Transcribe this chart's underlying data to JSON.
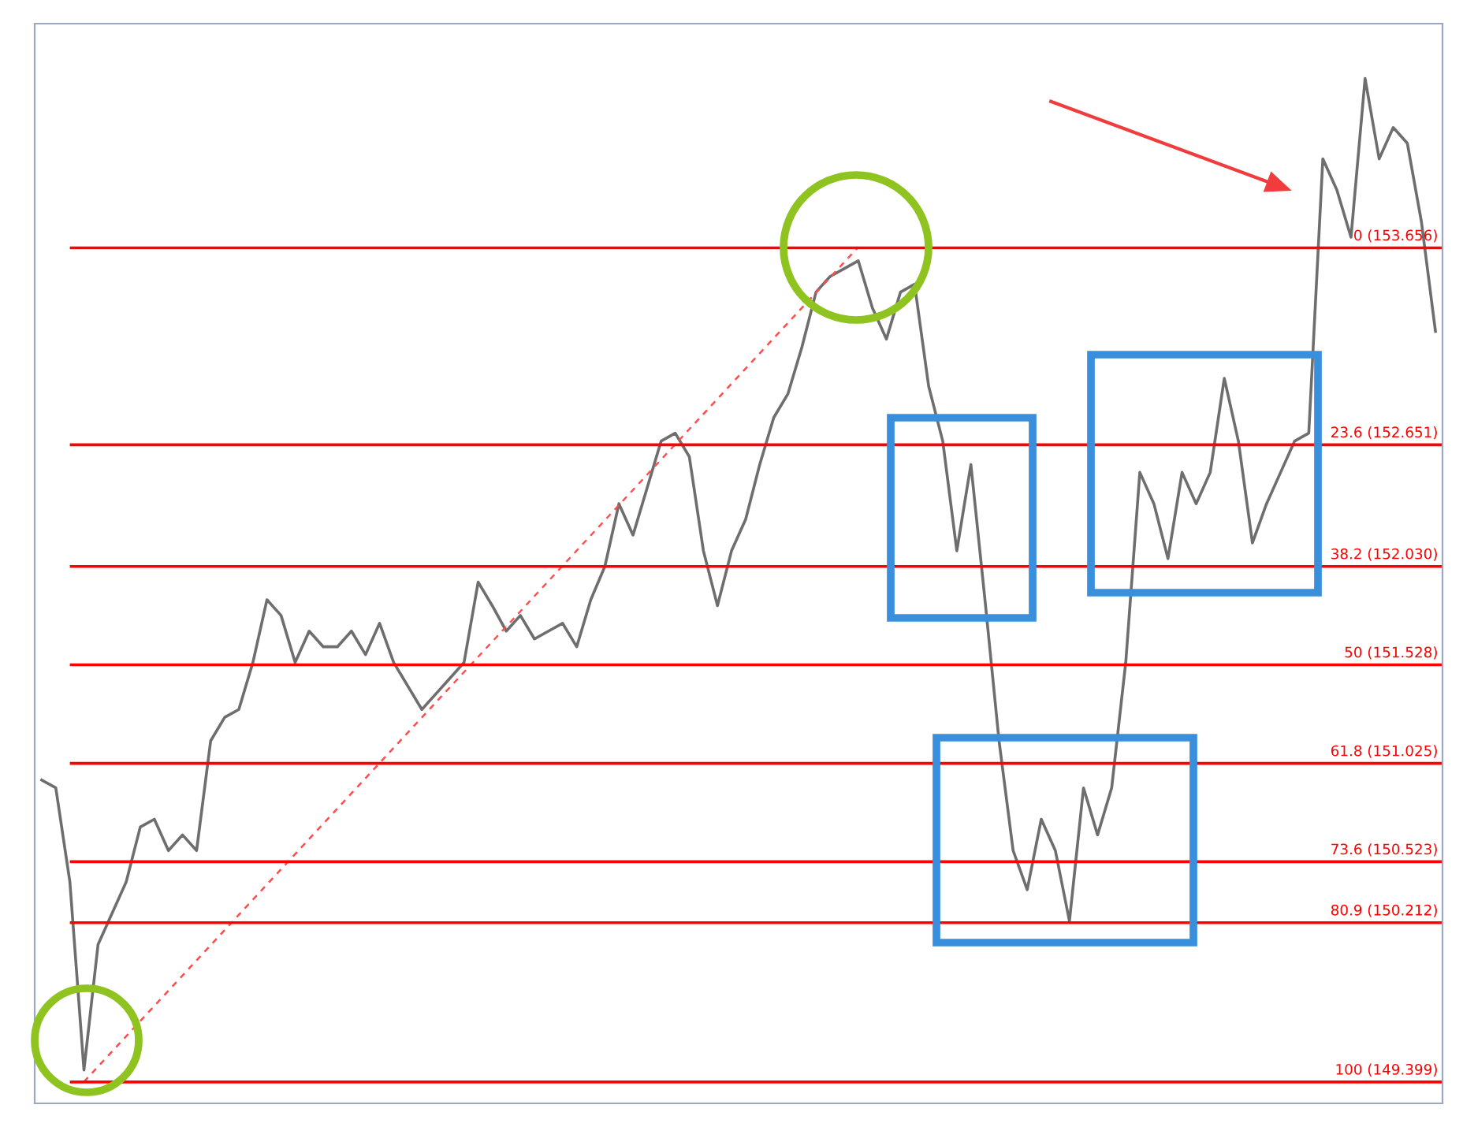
{
  "chart_data": {
    "type": "line",
    "categories": [
      null,
      null,
      null,
      null,
      null,
      null,
      null,
      null,
      null,
      null,
      null,
      null,
      null,
      null,
      null,
      null,
      null,
      null,
      null,
      null,
      null,
      null,
      null,
      null,
      null,
      null,
      null,
      null,
      null,
      null,
      null,
      null,
      null,
      null,
      null,
      null,
      null,
      null,
      null,
      null,
      null,
      null,
      null,
      null,
      null,
      null,
      null,
      null,
      null,
      null,
      null,
      null,
      null,
      null,
      null,
      null,
      null,
      null,
      null,
      null,
      null,
      null,
      null,
      null,
      null,
      null,
      null,
      null,
      null,
      null,
      null,
      null,
      null,
      null,
      null,
      null,
      null,
      null,
      null,
      null,
      null,
      null,
      null,
      null,
      null,
      null,
      null,
      null,
      null,
      null,
      null,
      null,
      null,
      null,
      null,
      null,
      null,
      null,
      null,
      null
    ],
    "series": [
      {
        "color": "#6e6e6e",
        "line_style": "solid",
        "values": [
          150.94,
          150.9,
          150.42,
          149.46,
          150.1,
          150.26,
          150.42,
          150.7,
          150.74,
          150.58,
          150.66,
          150.58,
          151.14,
          151.26,
          151.3,
          151.54,
          151.86,
          151.78,
          151.54,
          151.7,
          151.62,
          151.62,
          151.7,
          151.58,
          151.74,
          151.54,
          151.42,
          151.3,
          151.38,
          151.46,
          151.54,
          151.95,
          151.83,
          151.7,
          151.78,
          151.66,
          151.7,
          151.74,
          151.62,
          151.86,
          152.03,
          152.35,
          152.19,
          152.43,
          152.67,
          152.71,
          152.59,
          152.11,
          151.83,
          152.11,
          152.27,
          152.55,
          152.79,
          152.91,
          153.15,
          153.43,
          153.51,
          153.55,
          153.59,
          153.35,
          153.19,
          153.43,
          153.47,
          152.95,
          152.67,
          152.11,
          152.55,
          151.86,
          151.14,
          150.58,
          150.38,
          150.74,
          150.58,
          150.22,
          150.9,
          150.66,
          150.9,
          151.54,
          152.51,
          152.35,
          152.07,
          152.51,
          152.35,
          152.51,
          152.99,
          152.67,
          152.15,
          152.35,
          152.51,
          152.67,
          152.71,
          154.11,
          153.95,
          153.71,
          154.52,
          154.11,
          154.27,
          154.19,
          153.79,
          153.23
        ]
      },
      {
        "color": "#ff4d4d",
        "line_style": "dashed",
        "values": [
          null,
          null,
          null,
          149.4,
          null,
          null,
          null,
          null,
          null,
          null,
          null,
          null,
          null,
          null,
          null,
          null,
          null,
          null,
          null,
          null,
          null,
          null,
          null,
          null,
          null,
          null,
          null,
          null,
          null,
          null,
          null,
          null,
          null,
          null,
          null,
          null,
          null,
          null,
          null,
          null,
          null,
          null,
          null,
          null,
          null,
          null,
          null,
          null,
          null,
          null,
          null,
          null,
          null,
          null,
          null,
          null,
          null,
          null,
          153.66,
          null,
          null,
          null,
          null,
          null,
          null,
          null,
          null,
          null,
          null,
          null,
          null,
          null,
          null,
          null,
          null,
          null,
          null,
          null,
          null,
          null,
          null,
          null,
          null,
          null,
          null,
          null,
          null,
          null,
          null,
          null,
          null,
          null,
          null,
          null,
          null,
          null,
          null,
          null,
          null,
          null
        ]
      }
    ],
    "ylim": [
      149.29,
      154.8
    ],
    "ref_lines": [
      {
        "axis": "y",
        "value": 153.656,
        "label": "0 (153.656)",
        "color": "#ff0000"
      },
      {
        "axis": "y",
        "value": 152.651,
        "label": "23.6 (152.651)",
        "color": "#ff0000"
      },
      {
        "axis": "y",
        "value": 152.03,
        "label": "38.2 (152.030)",
        "color": "#ff0000"
      },
      {
        "axis": "y",
        "value": 151.528,
        "label": "50 (151.528)",
        "color": "#ff0000"
      },
      {
        "axis": "y",
        "value": 151.025,
        "label": "61.8 (151.025)",
        "color": "#ff0000"
      },
      {
        "axis": "y",
        "value": 150.523,
        "label": "73.6 (150.523)",
        "color": "#ff0000"
      },
      {
        "axis": "y",
        "value": 150.212,
        "label": "80.9 (150.212)",
        "color": "#ff0000"
      },
      {
        "axis": "y",
        "value": 149.399,
        "label": "100 (149.399)",
        "color": "#ff0000"
      }
    ],
    "grid": false,
    "legend": false
  }
}
